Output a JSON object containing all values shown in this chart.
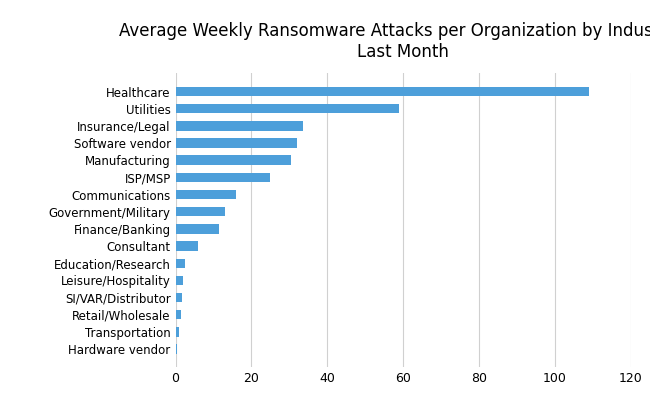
{
  "title": "Average Weekly Ransomware Attacks per Organization by Industry -\nLast Month",
  "categories": [
    "Hardware vendor",
    "Transportation",
    "Retail/Wholesale",
    "SI/VAR/Distributor",
    "Leisure/Hospitality",
    "Education/Research",
    "Consultant",
    "Finance/Banking",
    "Government/Military",
    "Communications",
    "ISP/MSP",
    "Manufacturing",
    "Software vendor",
    "Insurance/Legal",
    "Utilities",
    "Healthcare"
  ],
  "values": [
    0.5,
    1.0,
    1.5,
    1.8,
    2.0,
    2.5,
    6.0,
    11.5,
    13.0,
    16.0,
    25.0,
    30.5,
    32.0,
    33.5,
    59.0,
    109.0
  ],
  "bar_color": "#4d9fda",
  "xlim": [
    0,
    120
  ],
  "xticks": [
    0,
    20,
    40,
    60,
    80,
    100,
    120
  ],
  "title_fontsize": 12,
  "label_fontsize": 8.5,
  "tick_fontsize": 9,
  "background_color": "#ffffff",
  "grid_color": "#d0d0d0",
  "bar_height": 0.55
}
